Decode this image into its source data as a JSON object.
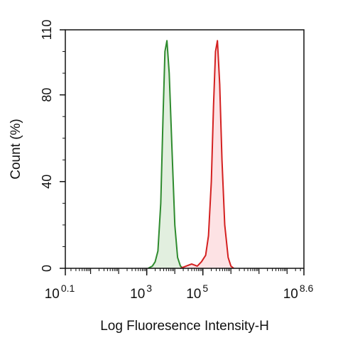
{
  "chart_data": {
    "type": "area",
    "xlabel": "Log Fluoresence Intensity-H",
    "ylabel": "Count  (%)",
    "x_scale": "log10",
    "xlim_log10": [
      0.1,
      8.6
    ],
    "ylim": [
      0,
      110
    ],
    "y_ticks": [
      {
        "value": 0,
        "label": "0"
      },
      {
        "value": 40,
        "label": "40"
      },
      {
        "value": 80,
        "label": "80"
      },
      {
        "value": 110,
        "label": "110"
      }
    ],
    "x_ticks": [
      {
        "log10": 0.1,
        "base": "10",
        "exp": "0.1"
      },
      {
        "log10": 3,
        "base": "10",
        "exp": "3"
      },
      {
        "log10": 5,
        "base": "10",
        "exp": "5"
      },
      {
        "log10": 8.6,
        "base": "10",
        "exp": "8.6"
      }
    ],
    "grid": false,
    "legend": "none",
    "series": [
      {
        "color": "#2e8b2e",
        "fill": "#e2efdf",
        "x_log10": [
          3.05,
          3.2,
          3.3,
          3.4,
          3.5,
          3.58,
          3.65,
          3.72,
          3.8,
          3.9,
          4.0,
          4.1,
          4.2,
          4.3
        ],
        "y": [
          0,
          1,
          3,
          8,
          30,
          70,
          100,
          105,
          90,
          55,
          20,
          5,
          1,
          0
        ]
      },
      {
        "color": "#d42020",
        "fill": "#fde2e4",
        "x_log10": [
          4.2,
          4.4,
          4.6,
          4.8,
          4.95,
          5.1,
          5.2,
          5.3,
          5.38,
          5.45,
          5.52,
          5.6,
          5.68,
          5.78,
          5.9,
          6.0,
          6.1
        ],
        "y": [
          0,
          1,
          2,
          1,
          3,
          6,
          15,
          40,
          75,
          100,
          105,
          85,
          50,
          20,
          5,
          1,
          0
        ]
      }
    ]
  }
}
